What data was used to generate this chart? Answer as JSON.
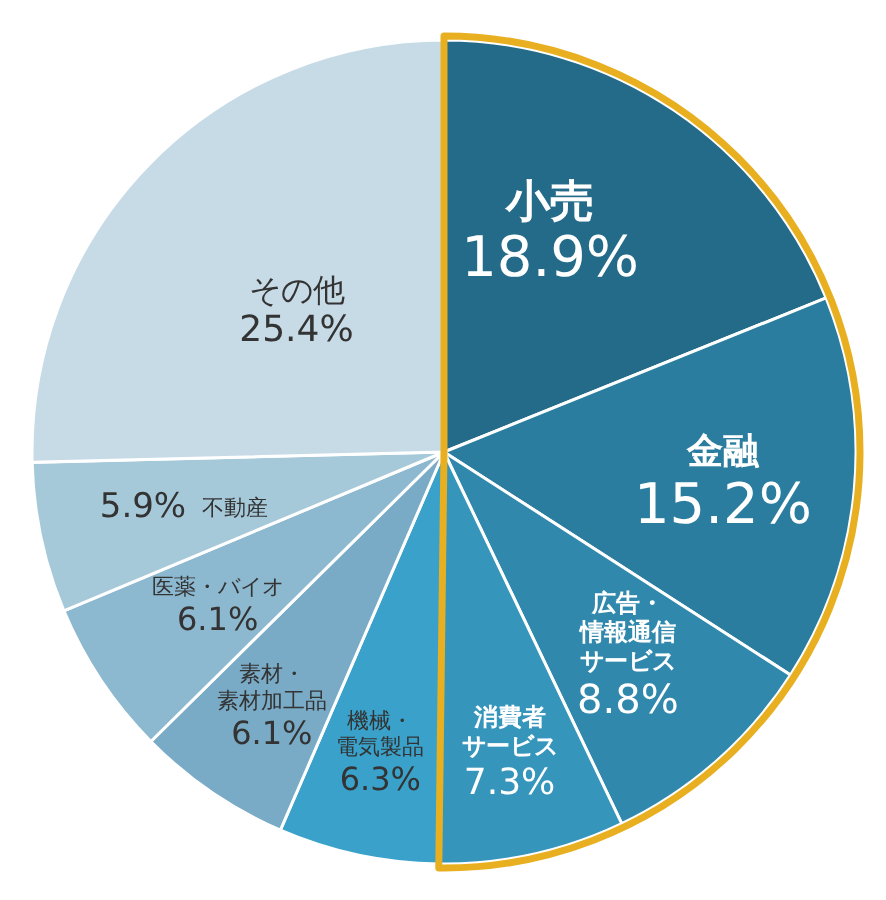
{
  "chart_data": {
    "type": "pie",
    "categories": [
      "小売",
      "金融",
      "広告・情報通信サービス",
      "消費者サービス",
      "機械・電気製品",
      "素材・素材加工品",
      "医薬・バイオ",
      "不動産",
      "その他"
    ],
    "values": [
      18.9,
      15.2,
      8.8,
      7.3,
      6.3,
      6.1,
      6.1,
      5.9,
      25.4
    ],
    "colors": [
      "#236b88",
      "#2a7d9e",
      "#3089ad",
      "#3595bb",
      "#3aa2ca",
      "#79abc6",
      "#8db9d0",
      "#a6c9da",
      "#c7dbe6"
    ],
    "value_labels": [
      "18.9%",
      "15.2%",
      "8.8%",
      "7.3%",
      "6.3%",
      "6.1%",
      "6.1%",
      "5.9%",
      "25.4%"
    ]
  }
}
